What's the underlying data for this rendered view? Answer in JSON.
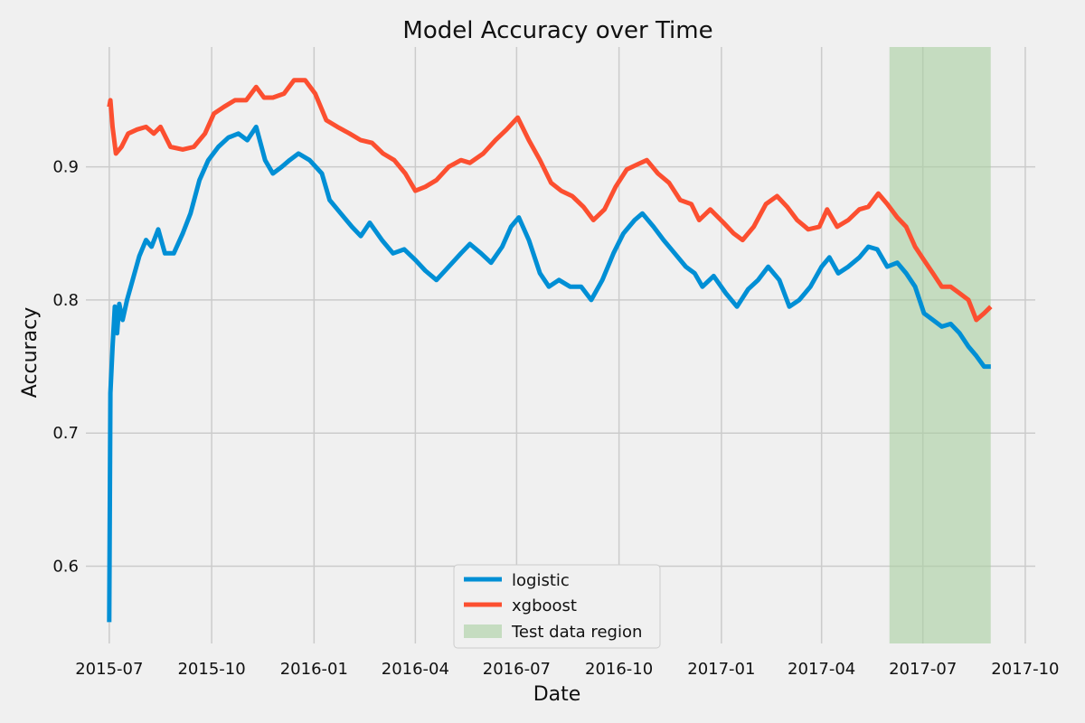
{
  "chart_data": {
    "type": "line",
    "title": "Model Accuracy over Time",
    "xlabel": "Date",
    "ylabel": "Accuracy",
    "xlim": [
      "2015-06-10",
      "2017-10-10"
    ],
    "ylim": [
      0.542,
      0.99
    ],
    "x_ticks": [
      "2015-07-01",
      "2015-10-01",
      "2016-01-01",
      "2016-04-01",
      "2016-07-01",
      "2016-10-01",
      "2017-01-01",
      "2017-04-01",
      "2017-07-01",
      "2017-10-01"
    ],
    "x_tick_labels": [
      "2015-07",
      "2015-10",
      "2016-01",
      "2016-04",
      "2016-07",
      "2016-10",
      "2017-01",
      "2017-04",
      "2017-07",
      "2017-10"
    ],
    "y_ticks": [
      0.6,
      0.7,
      0.8,
      0.9
    ],
    "y_tick_labels": [
      "0.6",
      "0.7",
      "0.8",
      "0.9"
    ],
    "grid": true,
    "legend_position": "bottom-center",
    "shaded_region": {
      "label": "Test data region",
      "x_start": "2017-06-01",
      "x_end": "2017-08-31",
      "color": "#a9cfa0"
    },
    "series": [
      {
        "name": "logistic",
        "color": "#008fd5",
        "points": [
          [
            "2015-07-01",
            0.558
          ],
          [
            "2015-07-02",
            0.73
          ],
          [
            "2015-07-04",
            0.765
          ],
          [
            "2015-07-06",
            0.795
          ],
          [
            "2015-07-08",
            0.775
          ],
          [
            "2015-07-10",
            0.797
          ],
          [
            "2015-07-13",
            0.785
          ],
          [
            "2015-07-17",
            0.8
          ],
          [
            "2015-07-22",
            0.815
          ],
          [
            "2015-07-28",
            0.833
          ],
          [
            "2015-08-03",
            0.845
          ],
          [
            "2015-08-08",
            0.84
          ],
          [
            "2015-08-14",
            0.853
          ],
          [
            "2015-08-20",
            0.835
          ],
          [
            "2015-08-28",
            0.835
          ],
          [
            "2015-09-05",
            0.85
          ],
          [
            "2015-09-12",
            0.865
          ],
          [
            "2015-09-20",
            0.89
          ],
          [
            "2015-09-28",
            0.905
          ],
          [
            "2015-10-07",
            0.915
          ],
          [
            "2015-10-16",
            0.922
          ],
          [
            "2015-10-25",
            0.925
          ],
          [
            "2015-11-02",
            0.92
          ],
          [
            "2015-11-10",
            0.93
          ],
          [
            "2015-11-18",
            0.905
          ],
          [
            "2015-11-25",
            0.895
          ],
          [
            "2015-12-03",
            0.9
          ],
          [
            "2015-12-10",
            0.905
          ],
          [
            "2015-12-18",
            0.91
          ],
          [
            "2015-12-28",
            0.905
          ],
          [
            "2016-01-08",
            0.895
          ],
          [
            "2016-01-15",
            0.875
          ],
          [
            "2016-01-25",
            0.865
          ],
          [
            "2016-02-04",
            0.855
          ],
          [
            "2016-02-12",
            0.848
          ],
          [
            "2016-02-20",
            0.858
          ],
          [
            "2016-03-02",
            0.845
          ],
          [
            "2016-03-12",
            0.835
          ],
          [
            "2016-03-22",
            0.838
          ],
          [
            "2016-04-01",
            0.83
          ],
          [
            "2016-04-10",
            0.822
          ],
          [
            "2016-04-20",
            0.815
          ],
          [
            "2016-05-01",
            0.825
          ],
          [
            "2016-05-12",
            0.835
          ],
          [
            "2016-05-20",
            0.842
          ],
          [
            "2016-05-30",
            0.835
          ],
          [
            "2016-06-08",
            0.828
          ],
          [
            "2016-06-18",
            0.84
          ],
          [
            "2016-06-26",
            0.855
          ],
          [
            "2016-07-03",
            0.862
          ],
          [
            "2016-07-12",
            0.845
          ],
          [
            "2016-07-22",
            0.82
          ],
          [
            "2016-07-30",
            0.81
          ],
          [
            "2016-08-08",
            0.815
          ],
          [
            "2016-08-18",
            0.81
          ],
          [
            "2016-08-28",
            0.81
          ],
          [
            "2016-09-06",
            0.8
          ],
          [
            "2016-09-16",
            0.815
          ],
          [
            "2016-09-26",
            0.835
          ],
          [
            "2016-10-05",
            0.85
          ],
          [
            "2016-10-15",
            0.86
          ],
          [
            "2016-10-22",
            0.865
          ],
          [
            "2016-11-01",
            0.855
          ],
          [
            "2016-11-10",
            0.845
          ],
          [
            "2016-11-20",
            0.835
          ],
          [
            "2016-11-30",
            0.825
          ],
          [
            "2016-12-08",
            0.82
          ],
          [
            "2016-12-15",
            0.81
          ],
          [
            "2016-12-25",
            0.818
          ],
          [
            "2017-01-05",
            0.805
          ],
          [
            "2017-01-15",
            0.795
          ],
          [
            "2017-01-25",
            0.808
          ],
          [
            "2017-02-03",
            0.815
          ],
          [
            "2017-02-12",
            0.825
          ],
          [
            "2017-02-22",
            0.815
          ],
          [
            "2017-03-03",
            0.795
          ],
          [
            "2017-03-12",
            0.8
          ],
          [
            "2017-03-22",
            0.81
          ],
          [
            "2017-04-01",
            0.825
          ],
          [
            "2017-04-08",
            0.832
          ],
          [
            "2017-04-16",
            0.82
          ],
          [
            "2017-04-25",
            0.825
          ],
          [
            "2017-05-05",
            0.832
          ],
          [
            "2017-05-13",
            0.84
          ],
          [
            "2017-05-21",
            0.838
          ],
          [
            "2017-05-30",
            0.825
          ],
          [
            "2017-06-08",
            0.828
          ],
          [
            "2017-06-16",
            0.82
          ],
          [
            "2017-06-24",
            0.81
          ],
          [
            "2017-07-02",
            0.79
          ],
          [
            "2017-07-10",
            0.785
          ],
          [
            "2017-07-18",
            0.78
          ],
          [
            "2017-07-26",
            0.782
          ],
          [
            "2017-08-03",
            0.775
          ],
          [
            "2017-08-11",
            0.765
          ],
          [
            "2017-08-18",
            0.758
          ],
          [
            "2017-08-25",
            0.75
          ],
          [
            "2017-08-31",
            0.75
          ]
        ]
      },
      {
        "name": "xgboost",
        "color": "#fc4f30",
        "points": [
          [
            "2015-07-01",
            0.945
          ],
          [
            "2015-07-02",
            0.95
          ],
          [
            "2015-07-04",
            0.93
          ],
          [
            "2015-07-07",
            0.91
          ],
          [
            "2015-07-12",
            0.915
          ],
          [
            "2015-07-18",
            0.925
          ],
          [
            "2015-07-26",
            0.928
          ],
          [
            "2015-08-03",
            0.93
          ],
          [
            "2015-08-10",
            0.925
          ],
          [
            "2015-08-16",
            0.93
          ],
          [
            "2015-08-25",
            0.915
          ],
          [
            "2015-09-05",
            0.913
          ],
          [
            "2015-09-15",
            0.915
          ],
          [
            "2015-09-25",
            0.925
          ],
          [
            "2015-10-03",
            0.94
          ],
          [
            "2015-10-12",
            0.945
          ],
          [
            "2015-10-22",
            0.95
          ],
          [
            "2015-11-01",
            0.95
          ],
          [
            "2015-11-10",
            0.96
          ],
          [
            "2015-11-17",
            0.952
          ],
          [
            "2015-11-25",
            0.952
          ],
          [
            "2015-12-05",
            0.955
          ],
          [
            "2015-12-14",
            0.965
          ],
          [
            "2015-12-24",
            0.965
          ],
          [
            "2016-01-02",
            0.955
          ],
          [
            "2016-01-12",
            0.935
          ],
          [
            "2016-01-22",
            0.93
          ],
          [
            "2016-02-02",
            0.925
          ],
          [
            "2016-02-12",
            0.92
          ],
          [
            "2016-02-22",
            0.918
          ],
          [
            "2016-03-03",
            0.91
          ],
          [
            "2016-03-13",
            0.905
          ],
          [
            "2016-03-23",
            0.895
          ],
          [
            "2016-04-01",
            0.882
          ],
          [
            "2016-04-10",
            0.885
          ],
          [
            "2016-04-20",
            0.89
          ],
          [
            "2016-05-01",
            0.9
          ],
          [
            "2016-05-12",
            0.905
          ],
          [
            "2016-05-20",
            0.903
          ],
          [
            "2016-06-01",
            0.91
          ],
          [
            "2016-06-12",
            0.92
          ],
          [
            "2016-06-22",
            0.928
          ],
          [
            "2016-07-02",
            0.937
          ],
          [
            "2016-07-12",
            0.92
          ],
          [
            "2016-07-22",
            0.905
          ],
          [
            "2016-08-01",
            0.888
          ],
          [
            "2016-08-10",
            0.882
          ],
          [
            "2016-08-20",
            0.878
          ],
          [
            "2016-08-30",
            0.87
          ],
          [
            "2016-09-08",
            0.86
          ],
          [
            "2016-09-18",
            0.868
          ],
          [
            "2016-09-28",
            0.885
          ],
          [
            "2016-10-08",
            0.898
          ],
          [
            "2016-10-18",
            0.902
          ],
          [
            "2016-10-26",
            0.905
          ],
          [
            "2016-11-05",
            0.895
          ],
          [
            "2016-11-15",
            0.888
          ],
          [
            "2016-11-25",
            0.875
          ],
          [
            "2016-12-05",
            0.872
          ],
          [
            "2016-12-12",
            0.86
          ],
          [
            "2016-12-22",
            0.868
          ],
          [
            "2017-01-03",
            0.858
          ],
          [
            "2017-01-12",
            0.85
          ],
          [
            "2017-01-20",
            0.845
          ],
          [
            "2017-01-30",
            0.855
          ],
          [
            "2017-02-10",
            0.872
          ],
          [
            "2017-02-20",
            0.878
          ],
          [
            "2017-03-01",
            0.87
          ],
          [
            "2017-03-10",
            0.86
          ],
          [
            "2017-03-20",
            0.853
          ],
          [
            "2017-03-30",
            0.855
          ],
          [
            "2017-04-06",
            0.868
          ],
          [
            "2017-04-15",
            0.855
          ],
          [
            "2017-04-25",
            0.86
          ],
          [
            "2017-05-05",
            0.868
          ],
          [
            "2017-05-13",
            0.87
          ],
          [
            "2017-05-22",
            0.88
          ],
          [
            "2017-05-30",
            0.872
          ],
          [
            "2017-06-08",
            0.862
          ],
          [
            "2017-06-16",
            0.855
          ],
          [
            "2017-06-24",
            0.84
          ],
          [
            "2017-07-02",
            0.83
          ],
          [
            "2017-07-10",
            0.82
          ],
          [
            "2017-07-18",
            0.81
          ],
          [
            "2017-07-26",
            0.81
          ],
          [
            "2017-08-03",
            0.805
          ],
          [
            "2017-08-11",
            0.8
          ],
          [
            "2017-08-18",
            0.785
          ],
          [
            "2017-08-25",
            0.79
          ],
          [
            "2017-08-31",
            0.795
          ]
        ]
      }
    ]
  }
}
